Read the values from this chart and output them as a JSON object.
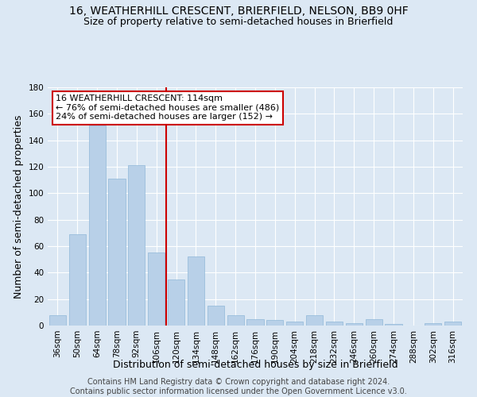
{
  "title": "16, WEATHERHILL CRESCENT, BRIERFIELD, NELSON, BB9 0HF",
  "subtitle": "Size of property relative to semi-detached houses in Brierfield",
  "xlabel": "Distribution of semi-detached houses by size in Brierfield",
  "ylabel": "Number of semi-detached properties",
  "footer": "Contains HM Land Registry data © Crown copyright and database right 2024.\nContains public sector information licensed under the Open Government Licence v3.0.",
  "categories": [
    "36sqm",
    "50sqm",
    "64sqm",
    "78sqm",
    "92sqm",
    "106sqm",
    "120sqm",
    "134sqm",
    "148sqm",
    "162sqm",
    "176sqm",
    "190sqm",
    "204sqm",
    "218sqm",
    "232sqm",
    "246sqm",
    "260sqm",
    "274sqm",
    "288sqm",
    "302sqm",
    "316sqm"
  ],
  "values": [
    8,
    69,
    151,
    111,
    121,
    55,
    35,
    52,
    15,
    8,
    5,
    4,
    3,
    8,
    3,
    2,
    5,
    1,
    0,
    2,
    3
  ],
  "bar_color": "#b8d0e8",
  "bar_edge_color": "#90b8d8",
  "annotation_title": "16 WEATHERHILL CRESCENT: 114sqm",
  "annotation_line1": "← 76% of semi-detached houses are smaller (486)",
  "annotation_line2": "24% of semi-detached houses are larger (152) →",
  "annotation_box_color": "#ffffff",
  "annotation_box_edge": "#cc0000",
  "marker_line_color": "#cc0000",
  "ylim": [
    0,
    180
  ],
  "yticks": [
    0,
    20,
    40,
    60,
    80,
    100,
    120,
    140,
    160,
    180
  ],
  "bg_color": "#dce8f4",
  "plot_bg_color": "#dce8f4",
  "title_fontsize": 10,
  "subtitle_fontsize": 9,
  "axis_label_fontsize": 9,
  "tick_fontsize": 7.5,
  "footer_fontsize": 7,
  "annotation_fontsize": 8
}
